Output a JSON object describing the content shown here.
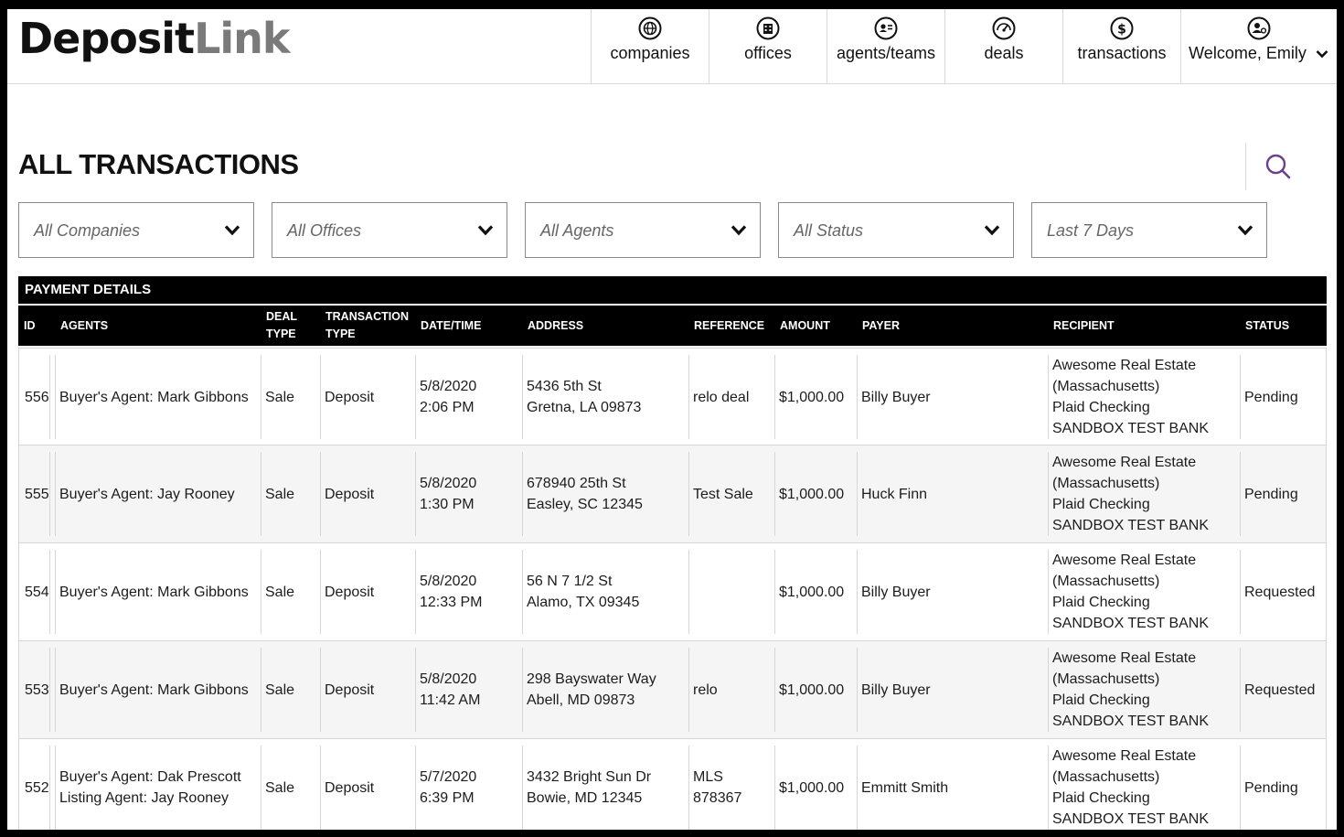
{
  "logo": {
    "part1": "Deposit",
    "part2": "Link"
  },
  "nav": {
    "items": [
      {
        "label": "companies",
        "icon": "globe-icon"
      },
      {
        "label": "offices",
        "icon": "building-icon"
      },
      {
        "label": "agents/teams",
        "icon": "agent-card-icon"
      },
      {
        "label": "deals",
        "icon": "gauge-icon"
      },
      {
        "label": "transactions",
        "icon": "dollar-icon"
      }
    ],
    "user": {
      "label": "Welcome, Emily",
      "icon": "user-gear-icon"
    }
  },
  "page": {
    "title": "ALL TRANSACTIONS",
    "search_icon": "search-icon"
  },
  "filters": [
    "All Companies",
    "All Offices",
    "All Agents",
    "All Status",
    "Last 7 Days"
  ],
  "table": {
    "section_title": "PAYMENT DETAILS",
    "headers": {
      "id": "ID",
      "agents": "AGENTS",
      "deal_type_1": "DEAL",
      "deal_type_2": "TYPE",
      "txn_type_1": "TRANSACTION",
      "txn_type_2": "TYPE",
      "datetime": "DATE/TIME",
      "address": "ADDRESS",
      "reference": "REFERENCE",
      "amount": "AMOUNT",
      "payer": "PAYER",
      "recipient": "RECIPIENT",
      "status": "STATUS"
    },
    "rows": [
      {
        "id": "556",
        "agent1": "Buyer's Agent: Mark Gibbons",
        "agent2": "",
        "deal": "Sale",
        "txn": "Deposit",
        "date": "5/8/2020",
        "time": "2:06 PM",
        "addr1": "5436 5th St",
        "addr2": "Gretna, LA 09873",
        "ref1": "relo deal",
        "ref2": "",
        "amount": "$1,000.00",
        "payer": "Billy Buyer",
        "rec1": "Awesome Real Estate",
        "rec2": "(Massachusetts)",
        "rec3": "Plaid Checking",
        "rec4": "SANDBOX TEST BANK",
        "status": "Pending"
      },
      {
        "id": "555",
        "agent1": "Buyer's Agent: Jay Rooney",
        "agent2": "",
        "deal": "Sale",
        "txn": "Deposit",
        "date": "5/8/2020",
        "time": "1:30 PM",
        "addr1": "678940 25th St",
        "addr2": "Easley, SC 12345",
        "ref1": "Test Sale",
        "ref2": "",
        "amount": "$1,000.00",
        "payer": "Huck Finn",
        "rec1": "Awesome Real Estate",
        "rec2": "(Massachusetts)",
        "rec3": "Plaid Checking",
        "rec4": "SANDBOX TEST BANK",
        "status": "Pending"
      },
      {
        "id": "554",
        "agent1": "Buyer's Agent: Mark Gibbons",
        "agent2": "",
        "deal": "Sale",
        "txn": "Deposit",
        "date": "5/8/2020",
        "time": "12:33 PM",
        "addr1": "56 N 7 1/2 St",
        "addr2": "Alamo, TX 09345",
        "ref1": "",
        "ref2": "",
        "amount": "$1,000.00",
        "payer": "Billy Buyer",
        "rec1": "Awesome Real Estate",
        "rec2": "(Massachusetts)",
        "rec3": "Plaid Checking",
        "rec4": "SANDBOX TEST BANK",
        "status": "Requested"
      },
      {
        "id": "553",
        "agent1": "Buyer's Agent: Mark Gibbons",
        "agent2": "",
        "deal": "Sale",
        "txn": "Deposit",
        "date": "5/8/2020",
        "time": "11:42 AM",
        "addr1": "298 Bayswater Way",
        "addr2": "Abell, MD 09873",
        "ref1": "relo",
        "ref2": "",
        "amount": "$1,000.00",
        "payer": "Billy Buyer",
        "rec1": "Awesome Real Estate",
        "rec2": "(Massachusetts)",
        "rec3": "Plaid Checking",
        "rec4": "SANDBOX TEST BANK",
        "status": "Requested"
      },
      {
        "id": "552",
        "agent1": "Buyer's Agent: Dak Prescott",
        "agent2": "Listing Agent: Jay Rooney",
        "deal": "Sale",
        "txn": "Deposit",
        "date": "5/7/2020",
        "time": "6:39 PM",
        "addr1": "3432 Bright Sun Dr",
        "addr2": "Bowie, MD 12345",
        "ref1": "MLS",
        "ref2": "878367",
        "amount": "$1,000.00",
        "payer": "Emmitt Smith",
        "rec1": "Awesome Real Estate",
        "rec2": "(Massachusetts)",
        "rec3": "Plaid Checking",
        "rec4": "SANDBOX TEST BANK",
        "status": "Pending"
      }
    ]
  }
}
